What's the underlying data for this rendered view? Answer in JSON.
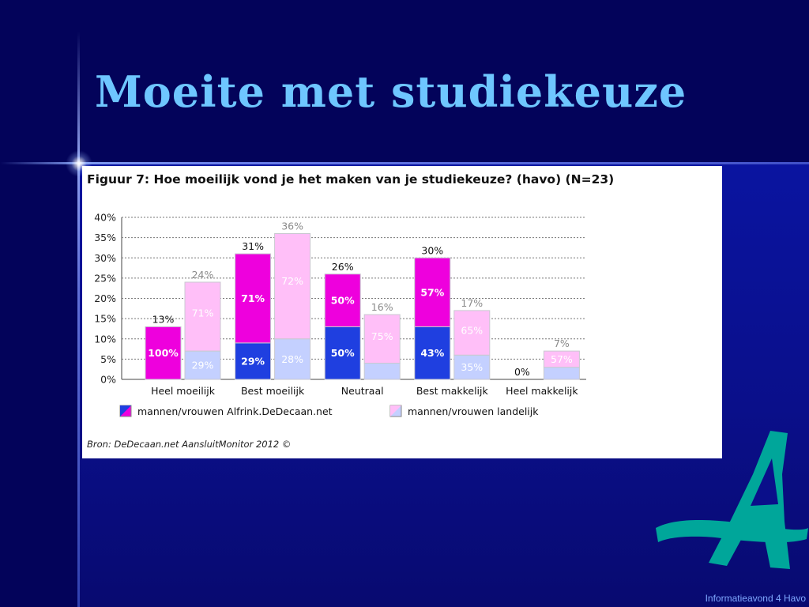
{
  "slide": {
    "title": "Moeite met studiekeuze",
    "footer": "Informatieavond 4 Havo"
  },
  "chart_data": {
    "type": "bar",
    "title": "Figuur 7: Hoe moeilijk vond je het maken van je studiekeuze? (havo) (N=23)",
    "source": "Bron: DeDecaan.net AansluitMonitor 2012 ©",
    "categories": [
      "Heel moeilijk",
      "Best moeilijk",
      "Neutraal",
      "Best makkelijk",
      "Heel makkelijk"
    ],
    "ylim": [
      0,
      40
    ],
    "yticks": [
      0,
      5,
      10,
      15,
      20,
      25,
      30,
      35,
      40
    ],
    "ytick_labels": [
      "0%",
      "5%",
      "10%",
      "15%",
      "20%",
      "25%",
      "30%",
      "35%",
      "40%"
    ],
    "grid": true,
    "legend_position": "bottom",
    "series": [
      {
        "name": "mannen/vrouwen Alfrink.DeDecaan.net",
        "totals": [
          13,
          31,
          26,
          30,
          0
        ],
        "total_labels": [
          "13%",
          "31%",
          "26%",
          "30%",
          "0%"
        ],
        "bottom_share_labels": [
          "100%",
          "29%",
          "50%",
          "43%",
          ""
        ],
        "top_share_labels": [
          "",
          "71%",
          "50%",
          "57%",
          ""
        ],
        "color_bottom": "#ee00dd",
        "color_top": "#ee00dd",
        "color_bottom_segments": [
          "#ee00dd",
          "#1f3fe0",
          "#1f3fe0",
          "#1f3fe0",
          "#1f3fe0"
        ],
        "bottom_segment_values": [
          13,
          9,
          13,
          13,
          0
        ],
        "top_segment_values": [
          0,
          22,
          13,
          17,
          0
        ]
      },
      {
        "name": "mannen/vrouwen landelijk",
        "totals": [
          24,
          36,
          16,
          17,
          7
        ],
        "total_labels": [
          "24%",
          "36%",
          "16%",
          "17%",
          "7%"
        ],
        "bottom_share_labels": [
          "29%",
          "28%",
          "",
          "35%",
          ""
        ],
        "top_share_labels": [
          "71%",
          "72%",
          "75%",
          "65%",
          "57%"
        ],
        "color_bottom": "#c4d0ff",
        "color_top": "#ffbff8",
        "bottom_segment_values": [
          7,
          10,
          4,
          6,
          3
        ],
        "top_segment_values": [
          17,
          26,
          12,
          11,
          4
        ]
      }
    ],
    "colors": {
      "magenta": "#ee00dd",
      "blue": "#1f3fe0",
      "light_pink": "#ffbff8",
      "light_blue": "#c4d0ff",
      "bar_border": "#c9c9d0",
      "total_label_dark": "#111111",
      "total_label_gray": "#8a8a8a"
    }
  }
}
